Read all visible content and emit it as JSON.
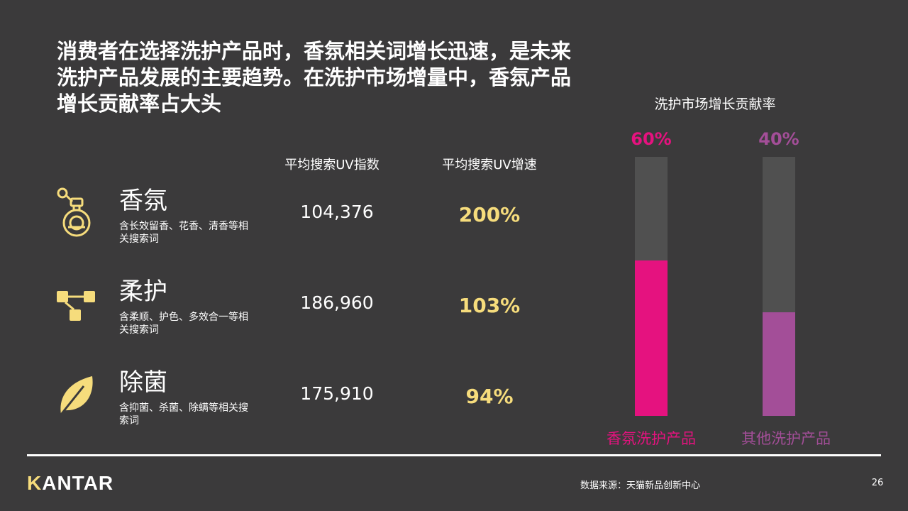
{
  "slide": {
    "headline": "消费者在选择洗护产品时，香氛相关词增长迅速，是未来洗护产品发展的主要趋势。在洗护市场增量中，香氛产品增长贡献率占大头",
    "page_number": "26",
    "source": "数据来源：天猫新品创新中心",
    "logo": "KANTAR"
  },
  "table": {
    "headers": {
      "uv_index": "平均搜索UV指数",
      "uv_growth": "平均搜索UV增速"
    },
    "rows": [
      {
        "icon": "perfume-bottle-icon",
        "name": "香氛",
        "desc": "含长效留香、花香、清香等相关搜索词",
        "uv": "104,376",
        "growth": "200%"
      },
      {
        "icon": "flow-chart-icon",
        "name": "柔护",
        "desc": "含柔顺、护色、多效合一等相关搜索词",
        "uv": "186,960",
        "growth": "103%"
      },
      {
        "icon": "leaf-icon",
        "name": "除菌",
        "desc": "含抑菌、杀菌、除螨等相关搜索词",
        "uv": "175,910",
        "growth": "94%"
      }
    ]
  },
  "colors": {
    "background": "#3b3a3b",
    "accent_yellow": "#f6dc7c",
    "bar_track": "#505050",
    "fragrance_bar": "#e5127f",
    "other_bar": "#a34e98"
  },
  "chart_data": {
    "type": "bar",
    "title": "洗护市场增长贡献率",
    "categories": [
      "香氛洗护产品",
      "其他洗护产品"
    ],
    "values": [
      60,
      40
    ],
    "labels": [
      "60%",
      "40%"
    ],
    "ylim": [
      0,
      100
    ],
    "colors": [
      "#e5127f",
      "#a34e98"
    ],
    "label_colors": [
      "#e5127f",
      "#a34e98"
    ],
    "grid": false
  }
}
